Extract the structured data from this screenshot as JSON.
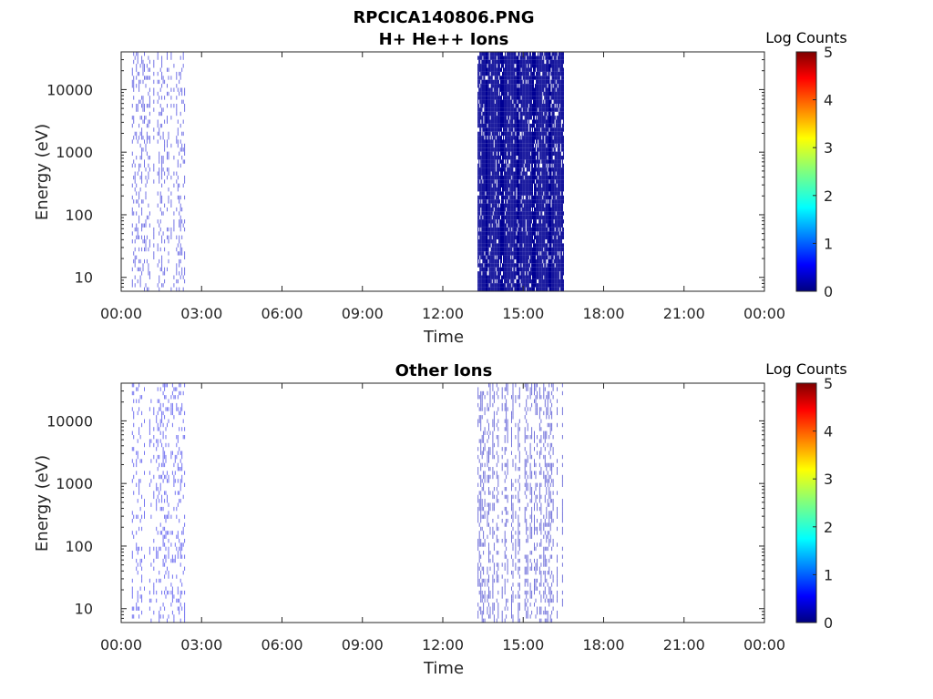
{
  "figure": {
    "title": "RPCICA140806.PNG"
  },
  "chart_data": [
    {
      "type": "heatmap",
      "title": "H+ He++ Ions",
      "xlabel": "Time",
      "ylabel": "Energy (eV)",
      "x_ticks": [
        "00:00",
        "03:00",
        "06:00",
        "09:00",
        "12:00",
        "15:00",
        "18:00",
        "21:00",
        "00:00"
      ],
      "x_range_hours": [
        0,
        24
      ],
      "y_scale": "log",
      "y_ticks": [
        10,
        100,
        1000,
        10000
      ],
      "y_tick_labels": [
        "10",
        "100",
        "1000",
        "10000"
      ],
      "y_range": [
        6,
        40000
      ],
      "colorbar": {
        "label": "Log Counts",
        "range": [
          0,
          5
        ],
        "ticks": [
          "0",
          "1",
          "2",
          "3",
          "4",
          "5"
        ],
        "colormap": "jet"
      },
      "activity_intervals": [
        {
          "start_hour": 0.4,
          "end_hour": 2.4,
          "intensity_log_counts": 0.4,
          "density": "sparse"
        },
        {
          "start_hour": 13.3,
          "end_hour": 16.5,
          "intensity_log_counts": 0.1,
          "density": "dense"
        }
      ]
    },
    {
      "type": "heatmap",
      "title": "Other Ions",
      "xlabel": "Time",
      "ylabel": "Energy (eV)",
      "x_ticks": [
        "00:00",
        "03:00",
        "06:00",
        "09:00",
        "12:00",
        "15:00",
        "18:00",
        "21:00",
        "00:00"
      ],
      "x_range_hours": [
        0,
        24
      ],
      "y_scale": "log",
      "y_ticks": [
        10,
        100,
        1000,
        10000
      ],
      "y_tick_labels": [
        "10",
        "100",
        "1000",
        "10000"
      ],
      "y_range": [
        6,
        40000
      ],
      "colorbar": {
        "label": "Log Counts",
        "range": [
          0,
          5
        ],
        "ticks": [
          "0",
          "1",
          "2",
          "3",
          "4",
          "5"
        ],
        "colormap": "jet"
      },
      "activity_intervals": [
        {
          "start_hour": 0.4,
          "end_hour": 2.4,
          "intensity_log_counts": 0.5,
          "density": "sparse"
        },
        {
          "start_hour": 13.3,
          "end_hour": 16.5,
          "intensity_log_counts": 0.3,
          "density": "medium"
        }
      ]
    }
  ]
}
